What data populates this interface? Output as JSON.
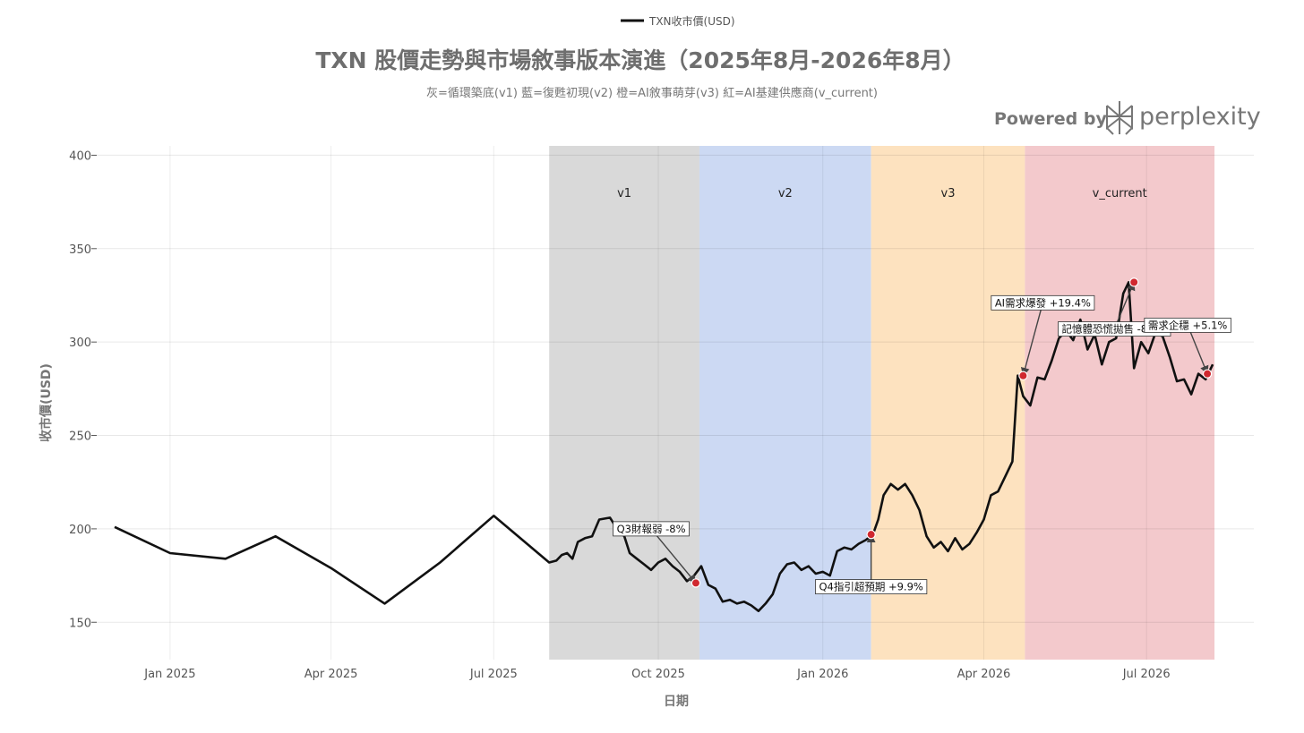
{
  "chart_data": {
    "type": "line",
    "title": "TXN 股價走勢與市場敘事版本演進（2025年8月-2026年8月）",
    "subtitle": "灰=循環築底(v1) 藍=復甦初現(v2) 橙=AI敘事萌芽(v3) 紅=AI基建供應商(v_current)",
    "xlabel": "日期",
    "ylabel": "收市價(USD)",
    "legend": {
      "position": "top-center",
      "entries": [
        "TXN收市價(USD)"
      ]
    },
    "xlim": [
      "2024-11-21",
      "2026-08-30"
    ],
    "ylim": [
      130,
      405
    ],
    "x_ticks": [
      {
        "date": "2025-01-01",
        "label": "Jan 2025"
      },
      {
        "date": "2025-04-01",
        "label": "Apr 2025"
      },
      {
        "date": "2025-07-01",
        "label": "Jul 2025"
      },
      {
        "date": "2025-10-01",
        "label": "Oct 2025"
      },
      {
        "date": "2026-01-01",
        "label": "Jan 2026"
      },
      {
        "date": "2026-04-01",
        "label": "Apr 2026"
      },
      {
        "date": "2026-07-01",
        "label": "Jul 2026"
      }
    ],
    "y_ticks": [
      150,
      200,
      250,
      300,
      350,
      400
    ],
    "grid": true,
    "line_color": "#111111",
    "series": [
      {
        "name": "TXN收市價(USD)",
        "points": [
          [
            "2024-12-01",
            201
          ],
          [
            "2025-01-01",
            187
          ],
          [
            "2025-02-01",
            184
          ],
          [
            "2025-03-01",
            196
          ],
          [
            "2025-04-01",
            179
          ],
          [
            "2025-05-01",
            160
          ],
          [
            "2025-06-01",
            182
          ],
          [
            "2025-07-01",
            207
          ],
          [
            "2025-08-01",
            182
          ],
          [
            "2025-08-05",
            183
          ],
          [
            "2025-08-08",
            186
          ],
          [
            "2025-08-11",
            187
          ],
          [
            "2025-08-14",
            184
          ],
          [
            "2025-08-17",
            193
          ],
          [
            "2025-08-21",
            195
          ],
          [
            "2025-08-25",
            196
          ],
          [
            "2025-08-29",
            205
          ],
          [
            "2025-09-04",
            206
          ],
          [
            "2025-09-08",
            200
          ],
          [
            "2025-09-12",
            196
          ],
          [
            "2025-09-15",
            187
          ],
          [
            "2025-09-19",
            184
          ],
          [
            "2025-09-23",
            181
          ],
          [
            "2025-09-27",
            178
          ],
          [
            "2025-10-01",
            182
          ],
          [
            "2025-10-05",
            184
          ],
          [
            "2025-10-09",
            180
          ],
          [
            "2025-10-13",
            177
          ],
          [
            "2025-10-17",
            172
          ],
          [
            "2025-10-21",
            175
          ],
          [
            "2025-10-25",
            180
          ],
          [
            "2025-10-29",
            170
          ],
          [
            "2025-11-02",
            168
          ],
          [
            "2025-11-06",
            161
          ],
          [
            "2025-11-10",
            162
          ],
          [
            "2025-11-14",
            160
          ],
          [
            "2025-11-18",
            161
          ],
          [
            "2025-11-22",
            159
          ],
          [
            "2025-11-26",
            156
          ],
          [
            "2025-11-30",
            160
          ],
          [
            "2025-12-04",
            165
          ],
          [
            "2025-12-08",
            176
          ],
          [
            "2025-12-12",
            181
          ],
          [
            "2025-12-16",
            182
          ],
          [
            "2025-12-20",
            178
          ],
          [
            "2025-12-24",
            180
          ],
          [
            "2025-12-28",
            176
          ],
          [
            "2026-01-01",
            177
          ],
          [
            "2026-01-05",
            175
          ],
          [
            "2026-01-09",
            188
          ],
          [
            "2026-01-13",
            190
          ],
          [
            "2026-01-17",
            189
          ],
          [
            "2026-01-21",
            192
          ],
          [
            "2026-01-25",
            194
          ],
          [
            "2026-01-29",
            197
          ],
          [
            "2026-02-01",
            205
          ],
          [
            "2026-02-04",
            218
          ],
          [
            "2026-02-08",
            224
          ],
          [
            "2026-02-12",
            221
          ],
          [
            "2026-02-16",
            224
          ],
          [
            "2026-02-20",
            218
          ],
          [
            "2026-02-24",
            210
          ],
          [
            "2026-02-28",
            196
          ],
          [
            "2026-03-04",
            190
          ],
          [
            "2026-03-08",
            193
          ],
          [
            "2026-03-12",
            188
          ],
          [
            "2026-03-16",
            195
          ],
          [
            "2026-03-20",
            189
          ],
          [
            "2026-03-24",
            192
          ],
          [
            "2026-03-28",
            198
          ],
          [
            "2026-04-01",
            205
          ],
          [
            "2026-04-05",
            218
          ],
          [
            "2026-04-09",
            220
          ],
          [
            "2026-04-13",
            228
          ],
          [
            "2026-04-17",
            236
          ],
          [
            "2026-04-20",
            282
          ],
          [
            "2026-04-23",
            271
          ],
          [
            "2026-04-27",
            266
          ],
          [
            "2026-05-01",
            281
          ],
          [
            "2026-05-05",
            280
          ],
          [
            "2026-05-09",
            290
          ],
          [
            "2026-05-13",
            302
          ],
          [
            "2026-05-17",
            306
          ],
          [
            "2026-05-21",
            301
          ],
          [
            "2026-05-25",
            312
          ],
          [
            "2026-05-29",
            296
          ],
          [
            "2026-06-02",
            304
          ],
          [
            "2026-06-06",
            288
          ],
          [
            "2026-06-10",
            300
          ],
          [
            "2026-06-14",
            302
          ],
          [
            "2026-06-18",
            326
          ],
          [
            "2026-06-21",
            332
          ],
          [
            "2026-06-24",
            286
          ],
          [
            "2026-06-28",
            300
          ],
          [
            "2026-07-02",
            294
          ],
          [
            "2026-07-06",
            305
          ],
          [
            "2026-07-10",
            303
          ],
          [
            "2026-07-14",
            292
          ],
          [
            "2026-07-18",
            279
          ],
          [
            "2026-07-22",
            280
          ],
          [
            "2026-07-26",
            272
          ],
          [
            "2026-07-30",
            283
          ],
          [
            "2026-08-03",
            280
          ],
          [
            "2026-08-07",
            288
          ]
        ]
      }
    ],
    "phase_bands": [
      {
        "label": "v1",
        "start": "2025-08-01",
        "end": "2025-10-24",
        "color": "#d9d9d9"
      },
      {
        "label": "v2",
        "start": "2025-10-24",
        "end": "2026-01-28",
        "color": "#ccd9f3"
      },
      {
        "label": "v3",
        "start": "2026-01-28",
        "end": "2026-04-24",
        "color": "#fde2bf"
      },
      {
        "label": "v_current",
        "start": "2026-04-24",
        "end": "2026-08-08",
        "color": "#f3c9cc"
      }
    ],
    "band_label_y": 380,
    "annotations": [
      {
        "text": "Q3財報弱 -8%",
        "x": "2025-10-22",
        "y": 171,
        "label_x": "2025-09-27",
        "label_y": 200
      },
      {
        "text": "Q4指引超預期 +9.9%",
        "x": "2026-01-28",
        "y": 197,
        "label_x": "2026-01-28",
        "label_y": 169
      },
      {
        "text": "AI需求爆發 +19.4%",
        "x": "2026-04-23",
        "y": 282,
        "label_x": "2026-05-04",
        "label_y": 321
      },
      {
        "text": "記憶體恐慌拋售 -8.8%",
        "x": "2026-06-24",
        "y": 332,
        "label_x": "2026-06-13",
        "label_y": 307,
        "partially_hidden": true
      },
      {
        "text": "需求企穩 +5.1%",
        "x": "2026-08-04",
        "y": 283,
        "label_x": "2026-07-24",
        "label_y": 309
      }
    ],
    "marker_color": "#d0282f"
  },
  "branding": {
    "powered_by": "Powered by",
    "brand": "perplexity"
  }
}
